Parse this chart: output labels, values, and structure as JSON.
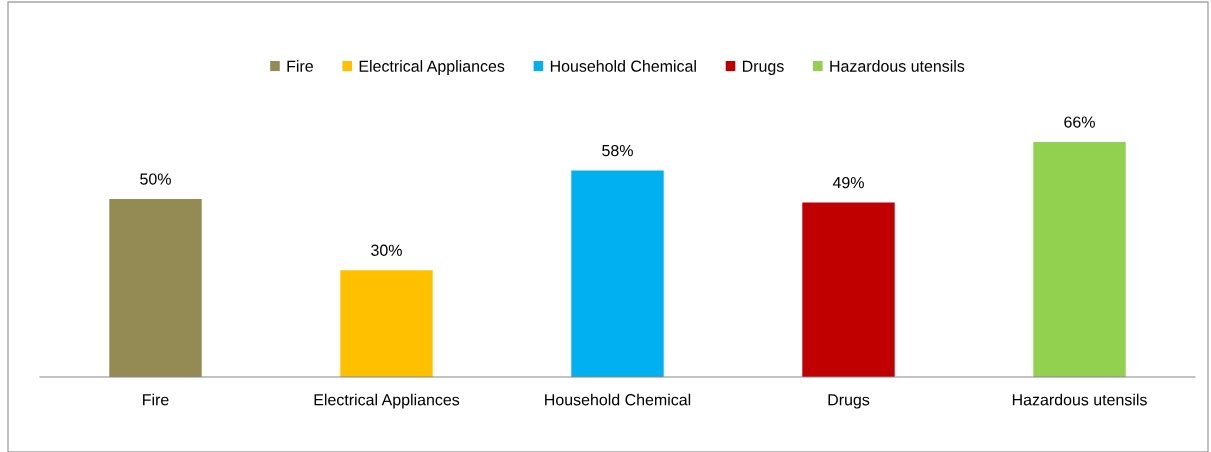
{
  "chart_data": {
    "type": "bar",
    "categories": [
      "Fire",
      "Electrical Appliances",
      "Household Chemical",
      "Drugs",
      "Hazardous utensils"
    ],
    "series": [
      {
        "name": "Fire",
        "color": "#948a54",
        "values": [
          50,
          null,
          null,
          null,
          null
        ],
        "value_labels": [
          "50%",
          null,
          null,
          null,
          null
        ]
      },
      {
        "name": "Electrical Appliances",
        "color": "#ffc000",
        "values": [
          null,
          30,
          null,
          null,
          null
        ],
        "value_labels": [
          null,
          "30%",
          null,
          null,
          null
        ]
      },
      {
        "name": "Household Chemical",
        "color": "#00b0f0",
        "values": [
          null,
          null,
          58,
          null,
          null
        ],
        "value_labels": [
          null,
          null,
          "58%",
          null,
          null
        ]
      },
      {
        "name": "Drugs",
        "color": "#c00000",
        "values": [
          null,
          null,
          null,
          49,
          null
        ],
        "value_labels": [
          null,
          null,
          null,
          "49%",
          null
        ]
      },
      {
        "name": "Hazardous utensils",
        "color": "#92d050",
        "values": [
          null,
          null,
          null,
          null,
          66
        ],
        "value_labels": [
          null,
          null,
          null,
          null,
          "66%"
        ]
      }
    ],
    "tick_labels": "x",
    "legend": "top"
  }
}
